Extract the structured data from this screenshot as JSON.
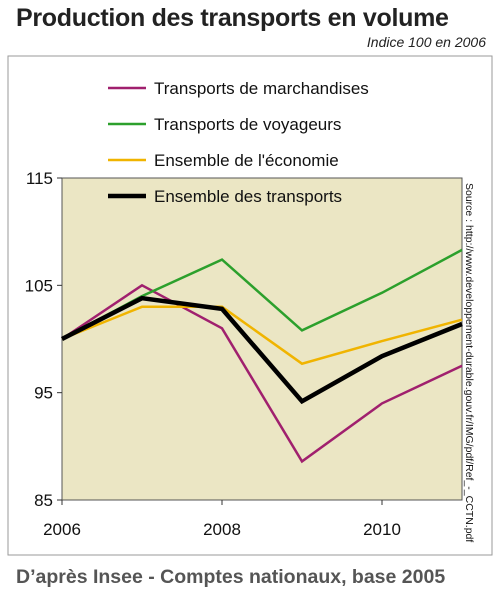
{
  "title": "Production des transports en volume",
  "subtitle": "Indice 100 en 2006",
  "footer": "D’après Insee - Comptes nationaux, base 2005",
  "source": "Source : http://www.developpement-durable.gouv.fr/IMG/pdf/Ref_-_CCTN.pdf",
  "colors": {
    "plot_background": "#ebe6c4",
    "outer_background": "#ffffff"
  },
  "chart_data": {
    "type": "line",
    "title": "Production des transports en volume",
    "subtitle": "Indice 100 en 2006",
    "x": [
      2006,
      2007,
      2008,
      2009,
      2010,
      2011
    ],
    "xticks": [
      "2006",
      "2008",
      "2010"
    ],
    "yticks": [
      "85",
      "95",
      "105",
      "115"
    ],
    "xlim": [
      2006,
      2011
    ],
    "ylim": [
      85,
      115
    ],
    "grid": false,
    "legend_position": "top",
    "series": [
      {
        "name": "Transports de marchandises",
        "color": "#a0206e",
        "width": 2.5,
        "values": [
          100,
          105,
          101,
          88.6,
          94,
          97.5
        ]
      },
      {
        "name": "Transports de voyageurs",
        "color": "#2ca02c",
        "width": 2.5,
        "values": [
          100,
          104,
          107.4,
          100.8,
          104.3,
          108.3
        ]
      },
      {
        "name": "Ensemble de l'économie",
        "color": "#f0b400",
        "width": 2.5,
        "values": [
          100,
          103,
          103,
          97.7,
          99.8,
          101.8
        ]
      },
      {
        "name": "Ensemble des transports",
        "color": "#000000",
        "width": 4.5,
        "values": [
          100,
          103.8,
          102.8,
          94.2,
          98.4,
          101.4
        ]
      }
    ]
  }
}
